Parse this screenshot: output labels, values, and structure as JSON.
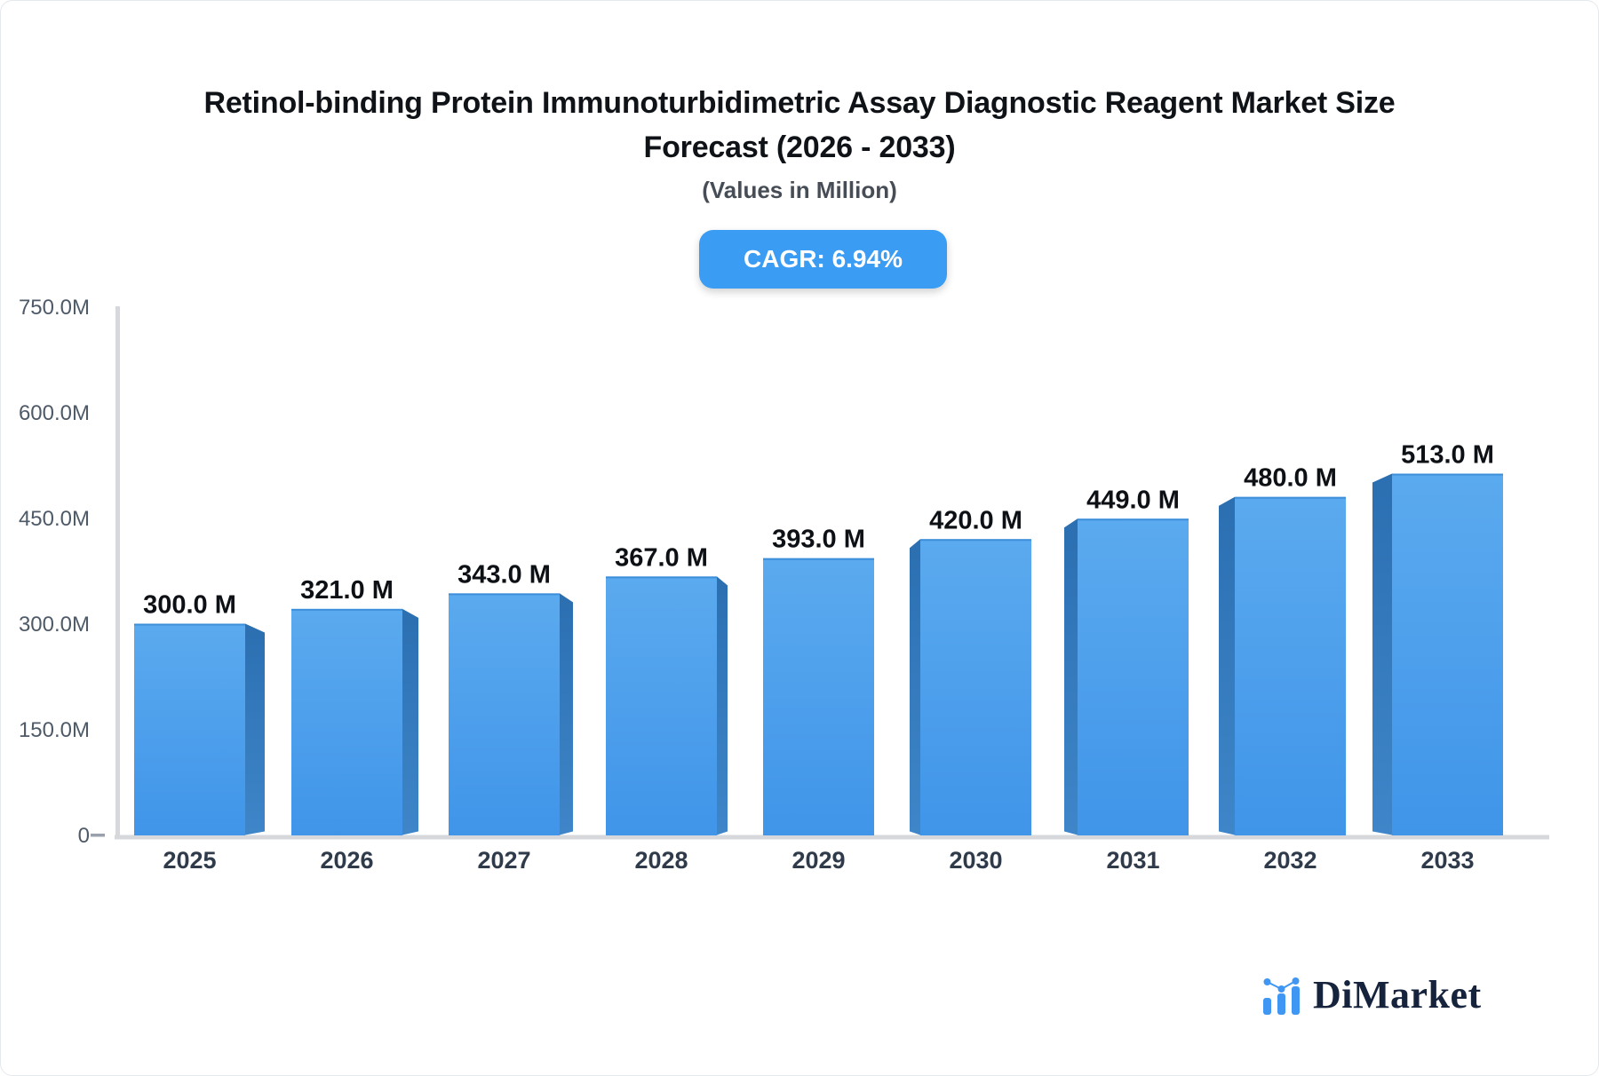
{
  "header": {
    "title_line1": "Retinol-binding Protein Immunoturbidimetric Assay Diagnostic Reagent Market Size",
    "title_line2": "Forecast (2026 - 2033)",
    "subtitle": "(Values in Million)",
    "cagr_badge": "CAGR: 6.94%",
    "badge_color": "#3b9cf3"
  },
  "chart_data": {
    "type": "bar",
    "title": "Retinol-binding Protein Immunoturbidimetric Assay Diagnostic Reagent Market Size Forecast (2026 - 2033)",
    "subtitle": "(Values in Million)",
    "cagr_percent": 6.94,
    "categories": [
      "2025",
      "2026",
      "2027",
      "2028",
      "2029",
      "2030",
      "2031",
      "2032",
      "2033"
    ],
    "values": [
      300.0,
      321.0,
      343.0,
      367.0,
      393.0,
      420.0,
      449.0,
      480.0,
      513.0
    ],
    "bar_labels": [
      "300.0 M",
      "321.0 M",
      "343.0 M",
      "367.0 M",
      "393.0 M",
      "420.0 M",
      "449.0 M",
      "480.0 M",
      "513.0 M"
    ],
    "xlabel": "",
    "ylabel": "",
    "ylim": [
      0,
      750
    ],
    "ytick_values": [
      750,
      600,
      450,
      300,
      150,
      0
    ],
    "ytick_labels": [
      "750.0M",
      "600.0M",
      "450.0M",
      "300.0M",
      "150.0M",
      "0"
    ],
    "grid": false,
    "legend": "none",
    "colors": {
      "bar_face_top": "#5baaef",
      "bar_face_bottom": "#4095e9",
      "bar_side_top": "#2b6fb1",
      "bar_side_bottom": "#3e86c9",
      "bar_top_edge": "#3e8fda",
      "axis_line": "#d6d8db",
      "tick_text": "#4e5a68",
      "category_text": "#2f3b4b",
      "value_text": "#0d1014",
      "zero_dash": "#99a1ac"
    }
  },
  "footer": {
    "brand": "DiMarket",
    "logo_icon": "mini-bar-chart-icon",
    "brand_color": "#16233c",
    "icon_color": "#3f97f3"
  }
}
